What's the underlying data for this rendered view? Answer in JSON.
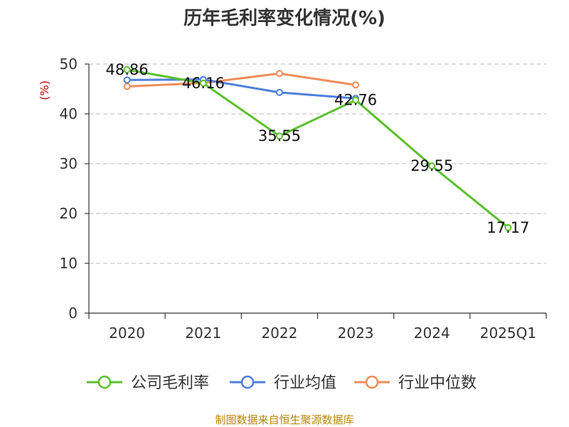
{
  "chart_data": {
    "type": "line",
    "title": "历年毛利率变化情况(%)",
    "ylabel": "(%)",
    "xlabel": "",
    "categories": [
      "2020",
      "2021",
      "2022",
      "2023",
      "2024",
      "2025Q1"
    ],
    "ylim": [
      0,
      50
    ],
    "yticks": [
      0,
      10,
      20,
      30,
      40,
      50
    ],
    "grid": true,
    "legend_position": "bottom",
    "series": [
      {
        "name": "公司毛利率",
        "color": "#5ac02c",
        "values": [
          48.86,
          46.16,
          35.55,
          42.76,
          29.55,
          17.17
        ],
        "labels": [
          "48.86",
          "46.16",
          "35.55",
          "42.76",
          "29.55",
          "17.17"
        ]
      },
      {
        "name": "行业均值",
        "color": "#4f7fdb",
        "values": [
          46.8,
          46.9,
          44.3,
          43.1,
          null,
          null
        ]
      },
      {
        "name": "行业中位数",
        "color": "#f08c58",
        "values": [
          45.5,
          46.2,
          48.1,
          45.8,
          null,
          null
        ]
      }
    ]
  },
  "source": "制图数据来自恒生聚源数据库"
}
